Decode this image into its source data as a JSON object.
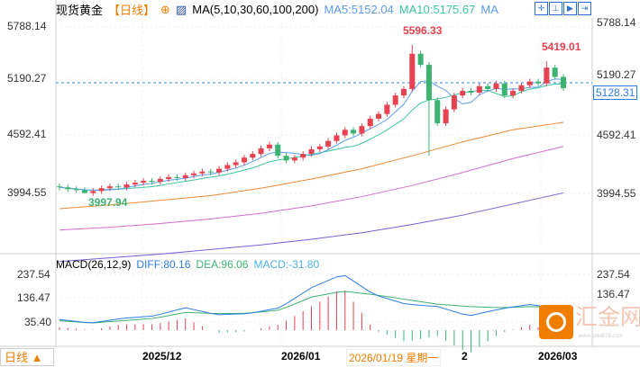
{
  "header": {
    "title": "现货黄金",
    "period": "【日线】",
    "ma_label": "MA(5,10,30,60,100,200)",
    "ma5": "MA5:5152.04",
    "ma10": "MA10:5175.67",
    "ma_more": "MA"
  },
  "toolbar": [
    "crosshair-icon",
    "zoom-in-icon",
    "zoom-out-icon",
    "exit-icon"
  ],
  "price_axis": [
    "5788.14",
    "5190.27",
    "4592.41",
    "3994.55"
  ],
  "current_price": "5128.31",
  "annotations": {
    "high": "5596.33",
    "high2": "5419.01",
    "low": "3997.94"
  },
  "macd": {
    "label": "MACD(26,12,9)",
    "diff": "DIFF:80.16",
    "dea": "DEA:96.06",
    "macd": "MACD:-31.80",
    "axis": [
      "237.54",
      "136.47",
      "35.40"
    ]
  },
  "x_axis": {
    "d1": "2025/12",
    "d2": "2026/01",
    "cursor": "2026/01/19 星期一",
    "d3": "2",
    "d4": "2026/03"
  },
  "period_button": "日线 ▲",
  "watermark": {
    "name": "汇金网",
    "url": "www.gold678.com"
  },
  "colors": {
    "up": "#e8414f",
    "down": "#3cb371",
    "ma5": "#5a9cf2",
    "ma10": "#3cc6a0",
    "ma30": "#f08a30",
    "ma60": "#d76bd0",
    "ma100": "#7b5bd6",
    "diff": "#2b7de9",
    "dea": "#3cb371"
  },
  "closes": [
    4060,
    4040,
    4030,
    3998,
    4020,
    4050,
    4070,
    4060,
    4090,
    4110,
    4130,
    4120,
    4150,
    4170,
    4160,
    4190,
    4210,
    4230,
    4220,
    4260,
    4300,
    4330,
    4380,
    4420,
    4480,
    4520,
    4400,
    4350,
    4380,
    4420,
    4470,
    4500,
    4560,
    4620,
    4680,
    4640,
    4720,
    4800,
    4850,
    4950,
    5050,
    5120,
    5500,
    5380,
    5000,
    4750,
    4900,
    5050,
    5100,
    5080,
    5150,
    5120,
    5180,
    5050,
    5100,
    5160,
    5200,
    5180,
    5350,
    5250,
    5128
  ],
  "ma30": [
    3830,
    3870,
    3920,
    3970,
    4050,
    4150,
    4260,
    4400,
    4550,
    4680,
    4760
  ],
  "ma60": [
    3600,
    3630,
    3670,
    3720,
    3780,
    3860,
    3960,
    4080,
    4220,
    4370,
    4500
  ],
  "ma100": [
    3260,
    3300,
    3340,
    3390,
    3440,
    3500,
    3570,
    3660,
    3760,
    3880,
    4000
  ],
  "diff": [
    45,
    30,
    50,
    60,
    95,
    65,
    70,
    95,
    180,
    237,
    150,
    110,
    100,
    60,
    90,
    110,
    80
  ],
  "dea": [
    40,
    30,
    40,
    50,
    75,
    70,
    72,
    85,
    140,
    165,
    150,
    130,
    110,
    100,
    95,
    100,
    96
  ]
}
